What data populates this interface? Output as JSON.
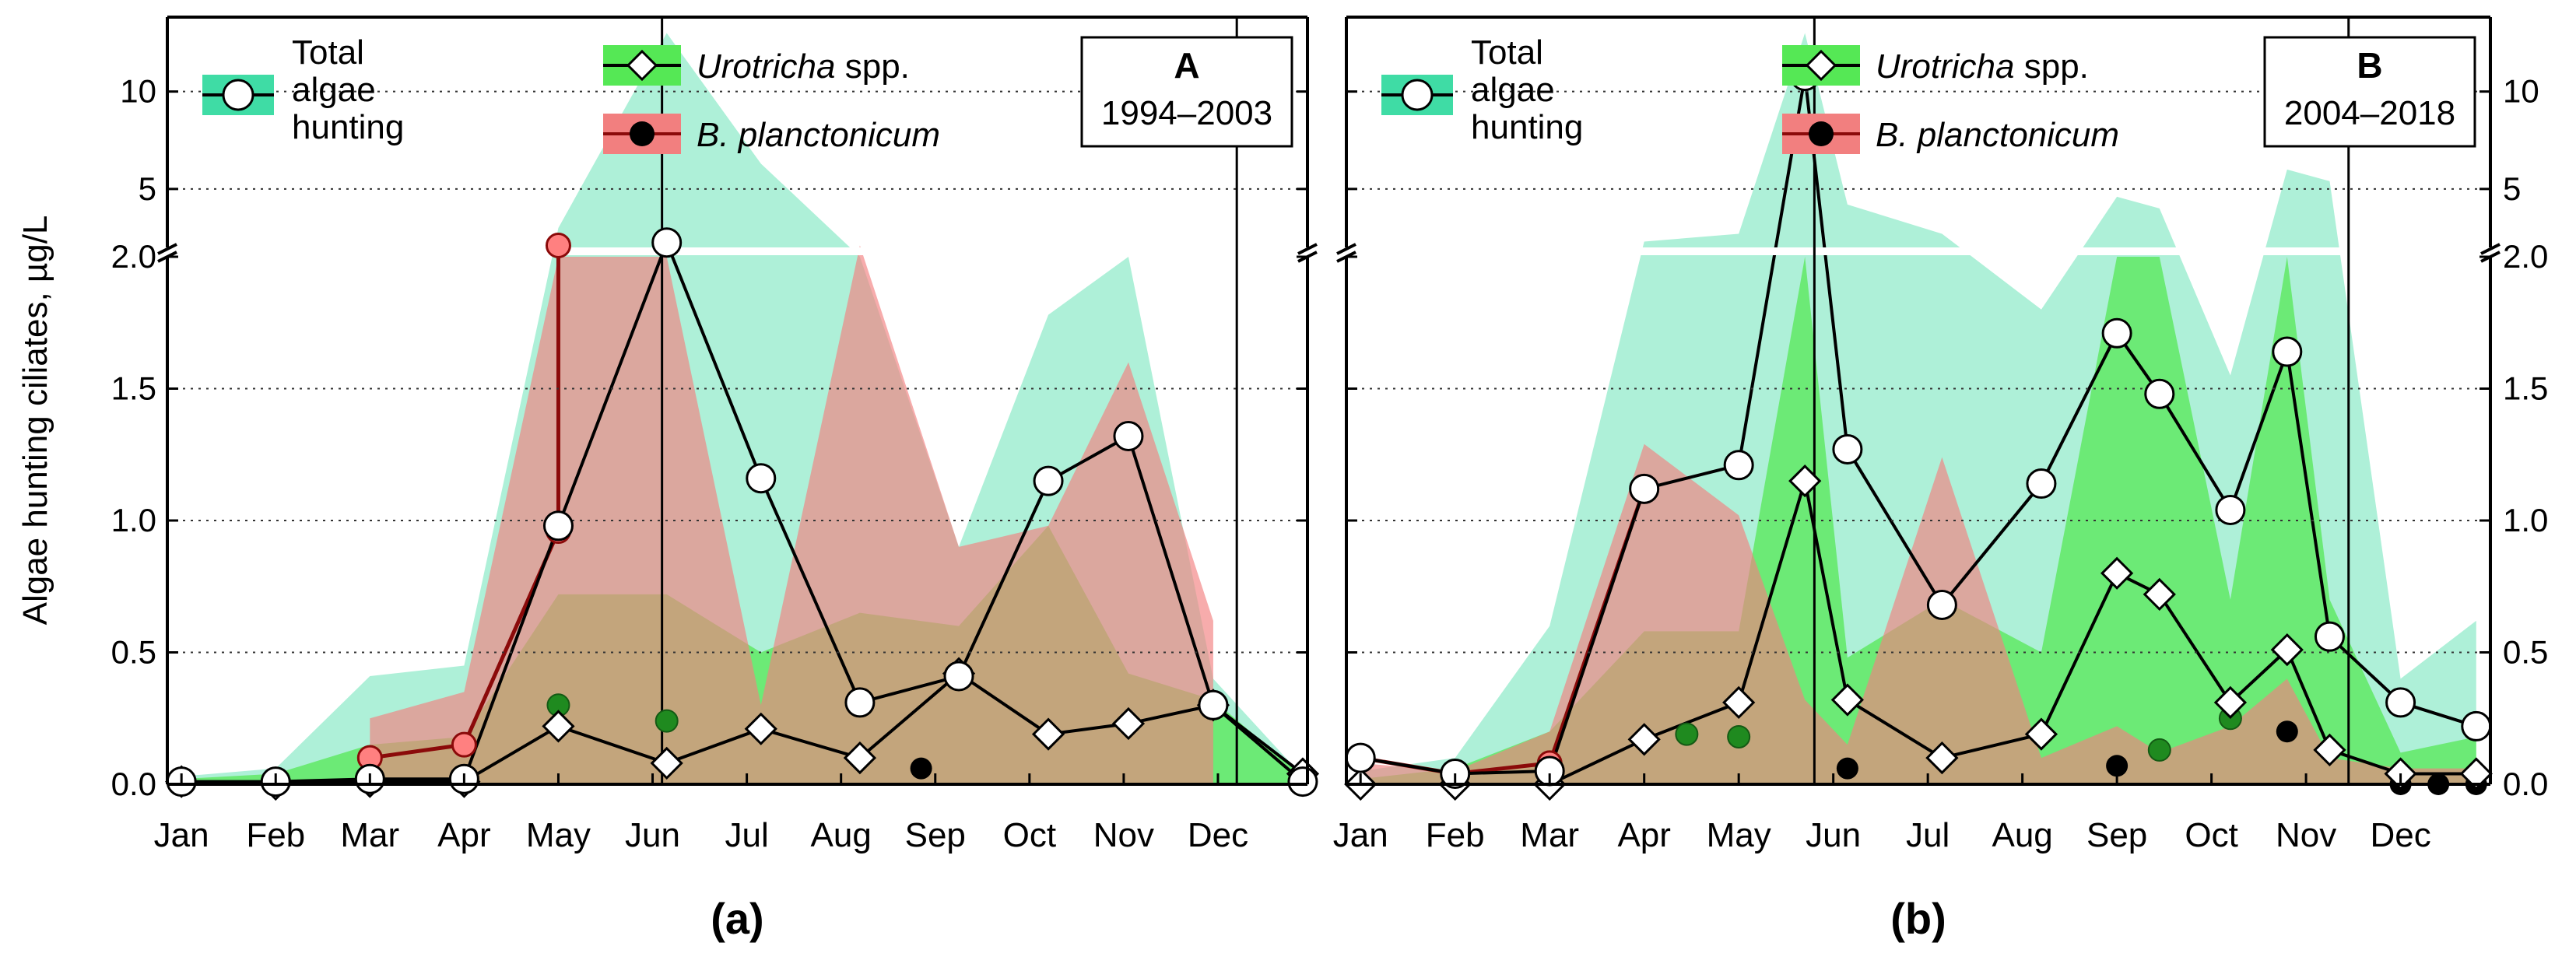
{
  "chart_data": {
    "type": "line",
    "ylabel": "Algae hunting ciliates, µg/L",
    "month_labels": [
      "Jan",
      "Feb",
      "Mar",
      "Apr",
      "May",
      "Jun",
      "Jul",
      "Aug",
      "Sep",
      "Oct",
      "Nov",
      "Dec"
    ],
    "y_axis": {
      "lower_range": [
        0,
        2.0
      ],
      "lower_ticks": [
        "0.0",
        "0.5",
        "1.0",
        "1.5",
        "2.0"
      ],
      "upper_range": [
        2.0,
        13.5
      ],
      "upper_ticks": [
        "5",
        "10"
      ],
      "axis_break_at": 2.0
    },
    "legend": {
      "total_lines": [
        "Total",
        "algae",
        "hunting"
      ],
      "urotricha_italic": "Urotricha",
      "urotricha_suffix": " spp.",
      "bursaria": "B. planctonicum"
    },
    "colors": {
      "total_band": "#aef0d8",
      "total_legend_patch": "#3fdca5",
      "urotricha_band": "#55e855",
      "urotricha_point": "#5ccf3a",
      "bursaria_band": "#f27f7f",
      "bursaria_line": "#8b0a0a",
      "bursaria_point": "#ff8080",
      "ecto_dot": "#1f8a1f"
    },
    "panels": [
      {
        "id": "a",
        "box_title": "A",
        "box_years": "1994–2003",
        "panel_label": "(a)",
        "x_range": [
          0,
          12.1
        ],
        "season_dividers": [
          5.25,
          11.35
        ],
        "series": {
          "total_algae_hunting": {
            "x": [
              0.15,
              1.15,
              2.15,
              3.15,
              4.15,
              5.3,
              6.3,
              7.35,
              8.4,
              9.35,
              10.2,
              11.1,
              12.05
            ],
            "y": [
              0.01,
              0.01,
              0.02,
              0.02,
              0.98,
              2.25,
              1.16,
              0.31,
              0.41,
              1.15,
              1.32,
              0.3,
              0.01
            ]
          },
          "urotricha": {
            "x": [
              0.15,
              1.15,
              2.15,
              3.15,
              4.15,
              5.3,
              6.3,
              7.35,
              8.4,
              9.35,
              10.2,
              11.1,
              12.05
            ],
            "y": [
              0.01,
              0.0,
              0.01,
              0.01,
              0.22,
              0.08,
              0.21,
              0.1,
              0.42,
              0.19,
              0.23,
              0.3,
              0.04
            ]
          },
          "bursaria": {
            "x": [
              2.15,
              3.15,
              4.15,
              4.15
            ],
            "y": [
              0.1,
              0.15,
              0.96,
              2.1
            ]
          },
          "green_dots": {
            "x": [
              4.15,
              5.3
            ],
            "y": [
              0.3,
              0.24
            ]
          },
          "black_dots": {
            "x": [
              8.0
            ],
            "y": [
              0.06
            ]
          }
        },
        "bands": {
          "total": {
            "x": [
              0.15,
              1.15,
              2.15,
              3.15,
              4.15,
              5.3,
              6.3,
              7.35,
              8.4,
              9.35,
              10.2,
              11.1,
              12.05
            ],
            "lo": [
              0.0,
              0.0,
              0.0,
              0.0,
              0.0,
              0.0,
              0.0,
              0.0,
              0.0,
              0.0,
              0.0,
              0.0,
              0.0
            ],
            "hi": [
              0.03,
              0.06,
              0.41,
              0.45,
              3.0,
              13.0,
              6.3,
              2.0,
              0.9,
              1.78,
              2.0,
              0.4,
              0.03
            ]
          },
          "urotricha": {
            "x": [
              0.15,
              1.15,
              2.15,
              3.15,
              4.15,
              5.3,
              6.3,
              7.35,
              8.4,
              9.35,
              10.2,
              11.1,
              12.05
            ],
            "lo": [
              0.0,
              0.0,
              0.0,
              0.0,
              0.0,
              0.0,
              0.0,
              0.0,
              0.0,
              0.0,
              0.0,
              0.0,
              0.0
            ],
            "hi": [
              0.02,
              0.04,
              0.15,
              0.18,
              0.72,
              0.72,
              0.5,
              0.65,
              0.6,
              0.98,
              0.42,
              0.32,
              0.03
            ]
          },
          "bursaria": {
            "x": [
              2.15,
              3.15,
              4.15,
              5.3,
              6.3,
              7.35,
              8.4,
              9.35,
              10.2,
              11.1
            ],
            "lo": [
              0.0,
              0.0,
              0.0,
              0.0,
              0.0,
              0.0,
              0.0,
              0.0,
              0.0,
              0.0
            ],
            "hi": [
              0.25,
              0.35,
              2.0,
              2.0,
              0.3,
              2.1,
              0.9,
              0.98,
              1.6,
              0.62
            ]
          }
        }
      },
      {
        "id": "b",
        "box_title": "B",
        "box_years": "2004–2018",
        "panel_label": "(b)",
        "x_range": [
          0,
          12.1
        ],
        "season_dividers": [
          4.95,
          10.6
        ],
        "series": {
          "total_algae_hunting": {
            "x": [
              0.15,
              1.15,
              2.15,
              3.15,
              4.15,
              4.85,
              5.3,
              6.3,
              7.35,
              8.15,
              8.6,
              9.35,
              9.95,
              10.4,
              11.15,
              11.95
            ],
            "y": [
              0.1,
              0.04,
              0.05,
              1.12,
              1.21,
              10.8,
              1.27,
              0.68,
              1.14,
              1.71,
              1.48,
              1.04,
              1.64,
              0.56,
              0.31,
              0.22
            ]
          },
          "urotricha": {
            "x": [
              0.15,
              1.15,
              2.15,
              3.15,
              4.15,
              4.85,
              5.3,
              6.3,
              7.35,
              8.15,
              8.6,
              9.35,
              9.95,
              10.4,
              11.15,
              11.95
            ],
            "y": [
              0.0,
              0.0,
              0.0,
              0.17,
              0.31,
              1.15,
              0.32,
              0.1,
              0.19,
              0.8,
              0.72,
              0.31,
              0.51,
              0.13,
              0.04,
              0.04
            ]
          },
          "bursaria": {
            "x": [
              0.15,
              1.15,
              2.15,
              3.15
            ],
            "y": [
              0.1,
              0.04,
              0.08,
              1.12
            ]
          },
          "green_dots": {
            "x": [
              3.6,
              4.15,
              8.6,
              9.35
            ],
            "y": [
              0.19,
              0.18,
              0.13,
              0.25
            ]
          },
          "black_dots": {
            "x": [
              5.3,
              8.15,
              9.95,
              11.15,
              11.55,
              11.95
            ],
            "y": [
              0.06,
              0.07,
              0.2,
              0.0,
              0.0,
              0.0
            ]
          }
        },
        "bands": {
          "total": {
            "x": [
              0.15,
              1.15,
              2.15,
              3.15,
              4.15,
              4.85,
              5.3,
              6.3,
              7.35,
              8.15,
              8.6,
              9.35,
              9.95,
              10.4,
              11.15,
              11.95
            ],
            "lo": [
              0.0,
              0.0,
              0.0,
              0.0,
              0.0,
              0.0,
              0.0,
              0.0,
              0.0,
              0.0,
              0.0,
              0.0,
              0.0,
              0.0,
              0.0,
              0.0
            ],
            "hi": [
              0.05,
              0.1,
              0.6,
              2.3,
              2.7,
              13.0,
              4.2,
              2.7,
              1.8,
              4.6,
              4.0,
              1.55,
              6.0,
              5.4,
              0.4,
              0.62
            ]
          },
          "urotricha": {
            "x": [
              0.15,
              1.15,
              2.15,
              3.15,
              4.15,
              4.85,
              5.3,
              6.3,
              7.35,
              8.15,
              8.6,
              9.35,
              9.95,
              10.4,
              11.15,
              11.95
            ],
            "lo": [
              0.0,
              0.0,
              0.0,
              0.0,
              0.0,
              0.0,
              0.0,
              0.0,
              0.0,
              0.0,
              0.0,
              0.0,
              0.0,
              0.0,
              0.0,
              0.0
            ],
            "hi": [
              0.02,
              0.06,
              0.2,
              0.58,
              0.58,
              2.0,
              0.48,
              0.7,
              0.5,
              2.0,
              2.0,
              0.7,
              2.0,
              0.7,
              0.12,
              0.18
            ]
          },
          "bursaria": {
            "x": [
              0.15,
              1.15,
              2.15,
              3.15,
              4.15,
              4.85,
              5.3,
              6.3,
              7.35,
              8.15,
              8.6,
              9.35,
              9.95,
              10.4,
              11.15,
              11.95
            ],
            "lo": [
              0.0,
              0.0,
              0.0,
              0.0,
              0.0,
              0.0,
              0.0,
              0.0,
              0.0,
              0.0,
              0.0,
              0.0,
              0.0,
              0.0,
              0.0,
              0.0
            ],
            "hi": [
              0.08,
              0.05,
              0.2,
              1.29,
              1.02,
              0.32,
              0.15,
              1.24,
              0.1,
              0.22,
              0.12,
              0.22,
              0.4,
              0.1,
              0.06,
              0.06
            ]
          }
        }
      }
    ]
  }
}
